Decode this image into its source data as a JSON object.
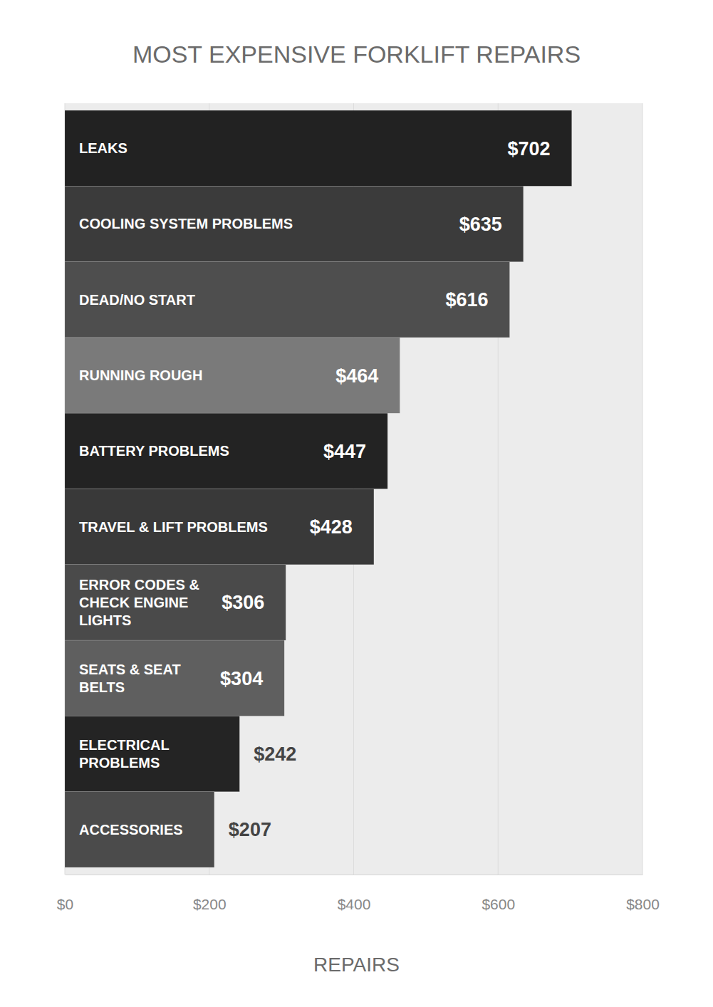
{
  "chart_data": {
    "type": "bar",
    "orientation": "horizontal",
    "title": "MOST EXPENSIVE FORKLIFT REPAIRS",
    "xlabel": "REPAIRS",
    "categories": [
      "LEAKS",
      "COOLING SYSTEM PROBLEMS",
      "DEAD/NO START",
      "RUNNING ROUGH",
      "BATTERY PROBLEMS",
      "TRAVEL & LIFT PROBLEMS",
      "ERROR CODES & CHECK ENGINE LIGHTS",
      "SEATS & SEAT BELTS",
      "ELECTRICAL PROBLEMS",
      "ACCESSORIES"
    ],
    "values": [
      702,
      635,
      616,
      464,
      447,
      428,
      306,
      304,
      242,
      207
    ],
    "value_labels": [
      "$702",
      "$635",
      "$616",
      "$464",
      "$447",
      "$428",
      "$306",
      "$304",
      "$242",
      "$207"
    ],
    "colors": [
      "#222222",
      "#3b3b3b",
      "#4e4e4e",
      "#7a7a7a",
      "#232323",
      "#393939",
      "#4a4a4a",
      "#5f5f5f",
      "#242424",
      "#4b4b4b"
    ],
    "xlim": [
      0,
      800
    ],
    "xticks": [
      {
        "value": 0,
        "label": "$0"
      },
      {
        "value": 200,
        "label": "$200"
      },
      {
        "value": 400,
        "label": "$400"
      },
      {
        "value": 600,
        "label": "$600"
      },
      {
        "value": 800,
        "label": "$800"
      }
    ],
    "grid": true,
    "data_labels": true
  }
}
